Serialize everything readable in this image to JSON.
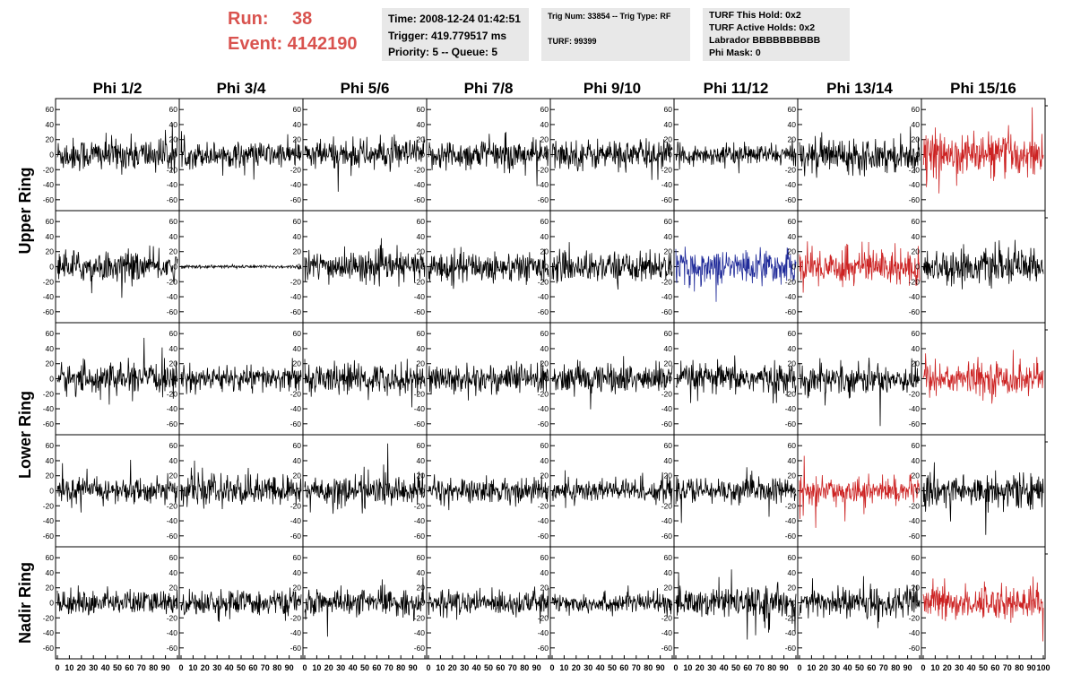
{
  "header": {
    "run_label": "Run:",
    "run_value": "38",
    "event_text": "Event: 4142190",
    "time_text": "Time: 2008-12-24 01:42:51",
    "trigger_text": "Trigger: 419.779517 ms",
    "priority_text": "Priority: 5 -- Queue: 5",
    "trig_num_text": "Trig Num: 33854 -- Trig Type: RF",
    "turf_text": "TURF: 99399",
    "turf_this_hold": "TURF This Hold: 0x2",
    "turf_active_holds": "TURF Active Holds: 0x2",
    "labrador": "Labrador BBBBBBBBBB",
    "phi_mask": "Phi Mask: 0"
  },
  "chart_data": {
    "type": "line",
    "columns": [
      "Phi 1/2",
      "Phi 3/4",
      "Phi 5/6",
      "Phi 7/8",
      "Phi 9/10",
      "Phi 11/12",
      "Phi 13/14",
      "Phi 15/16"
    ],
    "ring_labels": [
      {
        "text": "Upper Ring",
        "rows": [
          0,
          1
        ]
      },
      {
        "text": "Lower Ring",
        "rows": [
          2,
          3
        ]
      },
      {
        "text": "Nadir Ring",
        "rows": [
          4,
          4
        ]
      }
    ],
    "xlim": [
      0,
      100
    ],
    "ylim": [
      -65,
      65
    ],
    "y_ticks": [
      -60,
      -40,
      -20,
      0,
      20,
      40,
      60
    ],
    "x_ticks": [
      0,
      10,
      20,
      30,
      40,
      50,
      60,
      70,
      80,
      90,
      100
    ],
    "x_tick_labels": [
      "0",
      "10",
      "20",
      "30",
      "40",
      "50",
      "60",
      "70",
      "80",
      "90",
      "100"
    ],
    "colors": {
      "normal": "#000000",
      "red": "#cc2222",
      "blue": "#1f2a99"
    },
    "panel_style": [
      [
        "normal",
        "normal",
        "normal",
        "normal",
        "normal",
        "normal",
        "normal",
        "red"
      ],
      [
        "normal",
        "normal",
        "normal",
        "normal",
        "normal",
        "blue",
        "red",
        "normal"
      ],
      [
        "normal",
        "normal",
        "normal",
        "normal",
        "normal",
        "normal",
        "normal",
        "red"
      ],
      [
        "normal",
        "normal",
        "normal",
        "normal",
        "normal",
        "normal",
        "red",
        "normal"
      ],
      [
        "normal",
        "normal",
        "normal",
        "normal",
        "normal",
        "normal",
        "normal",
        "red"
      ]
    ],
    "panel_amplitude": [
      [
        20,
        15,
        18,
        18,
        18,
        12,
        20,
        25
      ],
      [
        18,
        2,
        18,
        18,
        18,
        20,
        22,
        20
      ],
      [
        18,
        15,
        18,
        18,
        18,
        18,
        18,
        20
      ],
      [
        15,
        18,
        18,
        15,
        15,
        15,
        15,
        20
      ],
      [
        15,
        15,
        15,
        15,
        12,
        18,
        18,
        20
      ]
    ],
    "samples_per_trace": 260
  }
}
